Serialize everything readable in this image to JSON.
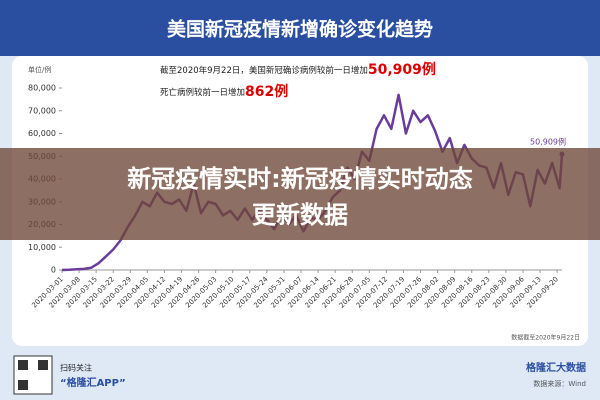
{
  "chart_data": {
    "type": "line",
    "title": "美国新冠疫情新增确诊变化趋势",
    "unit": "单位/例",
    "annotation": {
      "line1": [
        "截至2020年9月22日，美国新冠确诊病例较前一日增加",
        "50,909例"
      ],
      "line2": [
        "死亡病例较前一日增加",
        "862例"
      ]
    },
    "end_label": "50,909例",
    "source": "数据截至2020年9月22日",
    "overlay": [
      "新冠疫情实时:新冠疫情实时动态",
      "更新数据"
    ],
    "footer": {
      "qr_text": [
        "扫码关注",
        "“格隆汇APP”"
      ],
      "brand": "格隆汇大数据",
      "credit": "数据来源：Wind"
    },
    "x": [
      "2020-03-01",
      "2020-03-04",
      "2020-03-07",
      "2020-03-10",
      "2020-03-13",
      "2020-03-16",
      "2020-03-19",
      "2020-03-22",
      "2020-03-25",
      "2020-03-28",
      "2020-03-31",
      "2020-04-03",
      "2020-04-06",
      "2020-04-09",
      "2020-04-12",
      "2020-04-15",
      "2020-04-18",
      "2020-04-21",
      "2020-04-24",
      "2020-04-27",
      "2020-04-30",
      "2020-05-03",
      "2020-05-06",
      "2020-05-09",
      "2020-05-12",
      "2020-05-15",
      "2020-05-18",
      "2020-05-21",
      "2020-05-24",
      "2020-05-27",
      "2020-05-30",
      "2020-06-02",
      "2020-06-05",
      "2020-06-08",
      "2020-06-11",
      "2020-06-14",
      "2020-06-17",
      "2020-06-20",
      "2020-06-23",
      "2020-06-26",
      "2020-06-29",
      "2020-07-02",
      "2020-07-05",
      "2020-07-08",
      "2020-07-11",
      "2020-07-14",
      "2020-07-17",
      "2020-07-20",
      "2020-07-23",
      "2020-07-26",
      "2020-07-29",
      "2020-08-01",
      "2020-08-04",
      "2020-08-07",
      "2020-08-10",
      "2020-08-13",
      "2020-08-16",
      "2020-08-19",
      "2020-08-22",
      "2020-08-25",
      "2020-08-28",
      "2020-08-31",
      "2020-09-03",
      "2020-09-06",
      "2020-09-09",
      "2020-09-12",
      "2020-09-15",
      "2020-09-18",
      "2020-09-21",
      "2020-09-22"
    ],
    "series": [
      {
        "name": "新增确诊",
        "color": "#6a3d9a",
        "values": [
          0,
          100,
          300,
          500,
          1000,
          3000,
          6000,
          9000,
          13000,
          19000,
          24000,
          30000,
          28000,
          34000,
          30000,
          29000,
          31000,
          26000,
          38000,
          25000,
          30000,
          29000,
          24000,
          26000,
          22000,
          27000,
          22000,
          27000,
          22000,
          18000,
          24000,
          20000,
          24000,
          17000,
          23000,
          22000,
          26000,
          32000,
          35000,
          45000,
          40000,
          52000,
          48000,
          62000,
          68000,
          62000,
          77000,
          60000,
          70000,
          65000,
          68000,
          61000,
          52000,
          58000,
          47000,
          55000,
          49000,
          46000,
          45000,
          36000,
          47000,
          33000,
          43000,
          42000,
          28000,
          44000,
          38000,
          47000,
          36000,
          50909
        ]
      }
    ],
    "xlim": [
      "2020-03-01",
      "2020-09-22"
    ],
    "xticks": [
      "2020-03-01",
      "2020-03-08",
      "2020-03-15",
      "2020-03-22",
      "2020-03-29",
      "2020-04-05",
      "2020-04-12",
      "2020-04-19",
      "2020-04-26",
      "2020-05-03",
      "2020-05-10",
      "2020-05-17",
      "2020-05-24",
      "2020-05-31",
      "2020-06-07",
      "2020-06-14",
      "2020-06-21",
      "2020-06-28",
      "2020-07-05",
      "2020-07-12",
      "2020-07-19",
      "2020-07-26",
      "2020-08-02",
      "2020-08-09",
      "2020-08-16",
      "2020-08-23",
      "2020-08-30",
      "2020-09-06",
      "2020-09-13",
      "2020-09-20"
    ],
    "ylim": [
      0,
      80000
    ],
    "yticks": [
      0,
      {
        "value": 10000,
        "label": "10,000"
      },
      {
        "value": 20000,
        "label": "20,000"
      },
      {
        "value": 30000,
        "label": "30,000"
      },
      {
        "value": 40000,
        "label": "40,000"
      },
      {
        "value": 50000,
        "label": "50,000"
      },
      {
        "value": 60000,
        "label": "60,000"
      },
      {
        "value": 70000,
        "label": "70,000"
      },
      {
        "value": 80000,
        "label": "80,000"
      }
    ],
    "grid": false
  }
}
